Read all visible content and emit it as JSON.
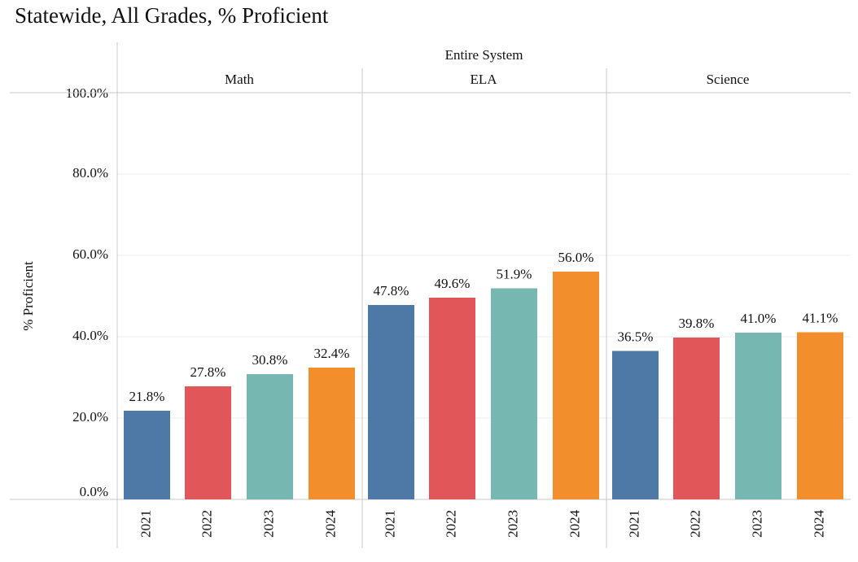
{
  "title": "Statewide,  All Grades,  % Proficient",
  "chart_data": {
    "type": "bar",
    "title": "Statewide,  All Grades,  % Proficient",
    "column_header": "Entire System",
    "ylabel": "% Proficient",
    "ylim": [
      0,
      100
    ],
    "yticks": [
      "0.0%",
      "20.0%",
      "40.0%",
      "60.0%",
      "80.0%",
      "100.0%"
    ],
    "grid": true,
    "categories": [
      "2021",
      "2022",
      "2023",
      "2024"
    ],
    "colors": [
      "#4e79a7",
      "#e15759",
      "#76b7b2",
      "#f28e2b"
    ],
    "panels": [
      {
        "name": "Math",
        "values": [
          21.8,
          27.8,
          30.8,
          32.4
        ],
        "labels": [
          "21.8%",
          "27.8%",
          "30.8%",
          "32.4%"
        ]
      },
      {
        "name": "ELA",
        "values": [
          47.8,
          49.6,
          51.9,
          56.0
        ],
        "labels": [
          "47.8%",
          "49.6%",
          "51.9%",
          "56.0%"
        ]
      },
      {
        "name": "Science",
        "values": [
          36.5,
          39.8,
          41.0,
          41.1
        ],
        "labels": [
          "36.5%",
          "39.8%",
          "41.0%",
          "41.1%"
        ]
      }
    ]
  }
}
